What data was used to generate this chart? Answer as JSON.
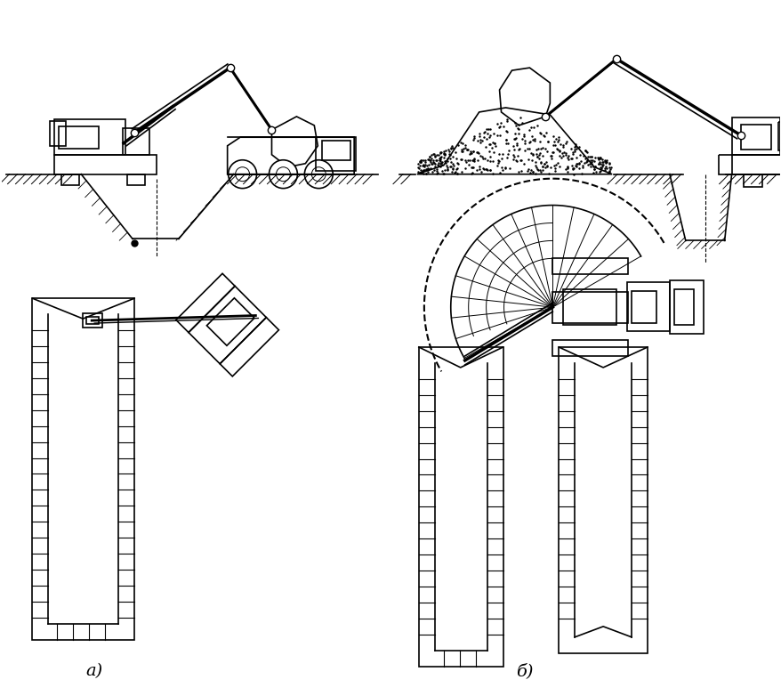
{
  "bg_color": "#ffffff",
  "line_color": "#000000",
  "label_a": "а)",
  "label_b": "б)",
  "figsize": [
    8.79,
    7.73
  ],
  "dpi": 100
}
